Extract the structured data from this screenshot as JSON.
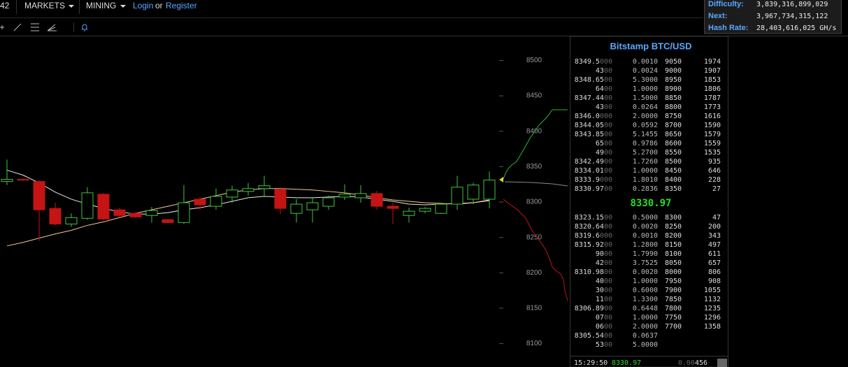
{
  "nav": {
    "cut_item": "42",
    "items": [
      "MARKETS",
      "MINING"
    ],
    "login": "Login",
    "or": "or",
    "register": "Register"
  },
  "stats": [
    {
      "label": "Difficulty:",
      "value": "3,839,316,899,029"
    },
    {
      "label": "Next:",
      "value": "3,967,734,315,122"
    },
    {
      "label": "Hash Rate:",
      "value": "28,403,616,025 GH/s"
    }
  ],
  "chart_data": {
    "type": "candlestick",
    "open": [
      8329,
      8332,
      8329,
      8291,
      8269,
      8277,
      8311,
      8289,
      8284,
      8281,
      8275,
      8271,
      8304,
      8294,
      8307,
      8315,
      8319,
      8318,
      8284,
      8289,
      8294,
      8307,
      8306,
      8312,
      8294,
      8281,
      8287,
      8284,
      8297,
      8304,
      8304
    ],
    "high": [
      8360,
      8333,
      8331,
      8299,
      8284,
      8321,
      8313,
      8292,
      8286,
      8293,
      8276,
      8324,
      8307,
      8319,
      8323,
      8327,
      8337,
      8321,
      8304,
      8307,
      8309,
      8325,
      8324,
      8316,
      8299,
      8292,
      8293,
      8299,
      8337,
      8327,
      8343
    ],
    "low": [
      8324,
      8330,
      8245,
      8267,
      8265,
      8275,
      8274,
      8279,
      8277,
      8271,
      8270,
      8269,
      8289,
      8289,
      8299,
      8309,
      8309,
      8283,
      8271,
      8271,
      8289,
      8303,
      8299,
      8289,
      8269,
      8271,
      8284,
      8283,
      8289,
      8297,
      8291
    ],
    "close": [
      8332,
      8331,
      8289,
      8269,
      8278,
      8313,
      8276,
      8281,
      8279,
      8288,
      8271,
      8299,
      8296,
      8308,
      8317,
      8319,
      8323,
      8291,
      8297,
      8299,
      8306,
      8311,
      8312,
      8294,
      8291,
      8287,
      8291,
      8297,
      8321,
      8324,
      8331
    ],
    "moving_averages": [
      {
        "color": "#e8e8e8",
        "values": [
          8345,
          8338,
          8327,
          8314,
          8304,
          8297,
          8291,
          8286,
          8283,
          8283,
          8285,
          8289,
          8292,
          8296,
          8301,
          8306,
          8308,
          8307,
          8306,
          8306,
          8307,
          8308,
          8307,
          8304,
          8301,
          8297,
          8296,
          8297,
          8298,
          8299,
          8302
        ]
      },
      {
        "color": "#f5c98a",
        "values": [
          8238,
          8243,
          8249,
          8255,
          8260,
          8267,
          8272,
          8278,
          8284,
          8289,
          8294,
          8299,
          8304,
          8309,
          8314,
          8317,
          8319,
          8319,
          8318,
          8317,
          8315,
          8313,
          8310,
          8306,
          8303,
          8301,
          8299,
          8298,
          8297,
          8299,
          8303
        ]
      }
    ],
    "ylim": [
      8067,
      8534
    ],
    "yticks": [
      8100,
      8150,
      8200,
      8250,
      8300,
      8350,
      8400,
      8450,
      8500
    ],
    "up_color": "#3fc43f",
    "down_color": "#c41414"
  },
  "order_book": {
    "title": "Bitstamp BTC/USD",
    "asks": [
      [
        "8349.5",
        "000",
        "0.0010",
        "9050",
        "1974"
      ],
      [
        "43",
        "00",
        "0.0024",
        "9000",
        "1907"
      ],
      [
        "8348.65",
        "00",
        "5.3000",
        "8950",
        "1853"
      ],
      [
        "64",
        "00",
        "1.0000",
        "8900",
        "1806"
      ],
      [
        "8347.44",
        "00",
        "1.5000",
        "8850",
        "1787"
      ],
      [
        "43",
        "00",
        "0.0264",
        "8800",
        "1773"
      ],
      [
        "8346.0",
        "000",
        "2.0000",
        "8750",
        "1616"
      ],
      [
        "8344.05",
        "00",
        "0.0592",
        "8700",
        "1590"
      ],
      [
        "8343.85",
        "00",
        "5.1455",
        "8650",
        "1579"
      ],
      [
        "65",
        "00",
        "0.9786",
        "8600",
        "1559"
      ],
      [
        "49",
        "00",
        "5.2700",
        "8550",
        "1535"
      ],
      [
        "8342.49",
        "00",
        "1.7260",
        "8500",
        "935"
      ],
      [
        "8334.01",
        "00",
        "1.0000",
        "8450",
        "646"
      ],
      [
        "8333.9",
        "000",
        "1.8010",
        "8400",
        "228"
      ],
      [
        "8330.97",
        "00",
        "0.2836",
        "8350",
        "27"
      ]
    ],
    "last_price": "8330.97",
    "bids": [
      [
        "8323.15",
        "00",
        "0.5000",
        "8300",
        "47"
      ],
      [
        "8320.64",
        "00",
        "0.0020",
        "8250",
        "200"
      ],
      [
        "8319.6",
        "000",
        "0.0010",
        "8200",
        "343"
      ],
      [
        "8315.92",
        "00",
        "1.2800",
        "8150",
        "497"
      ],
      [
        "90",
        "00",
        "1.7990",
        "8100",
        "611"
      ],
      [
        "42",
        "00",
        "3.7525",
        "8050",
        "657"
      ],
      [
        "8310.98",
        "00",
        "0.0020",
        "8000",
        "806"
      ],
      [
        "40",
        "00",
        "1.0000",
        "7950",
        "908"
      ],
      [
        "30",
        "00",
        "0.6000",
        "7900",
        "1055"
      ],
      [
        "11",
        "00",
        "1.3300",
        "7850",
        "1132"
      ],
      [
        "8306.89",
        "00",
        "0.6448",
        "7800",
        "1235"
      ],
      [
        "07",
        "00",
        "1.0000",
        "7750",
        "1296"
      ],
      [
        "06",
        "00",
        "2.0000",
        "7700",
        "1358"
      ],
      [
        "8305.54",
        "00",
        "0.0637"
      ],
      [
        "53",
        "00",
        "5.0000"
      ]
    ],
    "last_trade": {
      "time": "15:29:50",
      "price": "8330.97",
      "amount": [
        "0.00",
        "456"
      ]
    }
  }
}
